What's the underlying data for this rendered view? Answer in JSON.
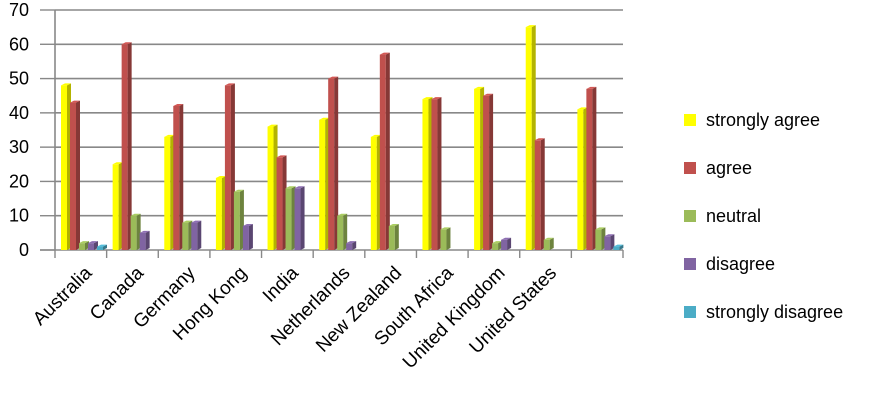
{
  "chart_data": {
    "type": "bar",
    "categories": [
      "Australia",
      "Canada",
      "Germany",
      "Hong Kong",
      "India",
      "Netherlands",
      "New Zealand",
      "South Africa",
      "United Kingdom",
      "United States",
      ""
    ],
    "series": [
      {
        "name": "strongly agree",
        "color": "#ffff00",
        "values": [
          48,
          25,
          33,
          21,
          36,
          38,
          33,
          44,
          47,
          65,
          41
        ]
      },
      {
        "name": "agree",
        "color": "#c0504d",
        "values": [
          43,
          60,
          42,
          48,
          27,
          50,
          57,
          44,
          45,
          32,
          47
        ]
      },
      {
        "name": "neutral",
        "color": "#9bbb59",
        "values": [
          2,
          10,
          8,
          17,
          18,
          10,
          7,
          6,
          2,
          3,
          6
        ]
      },
      {
        "name": "disagree",
        "color": "#8064a2",
        "values": [
          2,
          5,
          8,
          7,
          18,
          2,
          0,
          0,
          3,
          0,
          4
        ]
      },
      {
        "name": "strongly disagree",
        "color": "#4bacc6",
        "values": [
          1,
          0,
          0,
          0,
          0,
          0,
          0,
          0,
          0,
          0,
          1
        ]
      }
    ],
    "yticks": [
      "0",
      "10",
      "20",
      "30",
      "40",
      "50",
      "60",
      "70"
    ],
    "ylim": [
      0,
      70
    ],
    "grid": true,
    "legend": "right",
    "title": "",
    "xlabel": "",
    "ylabel": ""
  }
}
